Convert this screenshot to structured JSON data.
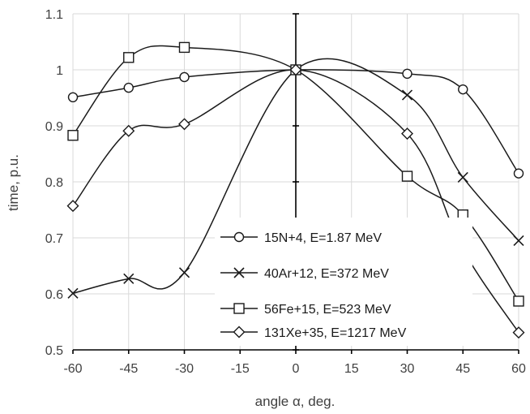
{
  "chart_data": {
    "type": "line",
    "title": "",
    "xlabel": "angle α, deg.",
    "ylabel": "time, p.u.",
    "xlim": [
      -60,
      60
    ],
    "ylim": [
      0.5,
      1.1
    ],
    "xticks": [
      -60,
      -45,
      -30,
      -15,
      0,
      15,
      30,
      45,
      60
    ],
    "yticks": [
      0.5,
      0.6,
      0.7,
      0.8,
      0.9,
      1,
      1.1
    ],
    "grid": true,
    "legend_position": "lower-center",
    "x": [
      -60,
      -45,
      -30,
      0,
      30,
      45,
      60
    ],
    "series": [
      {
        "name": "15N+4, E=1.87 MeV",
        "marker": "circle",
        "values": [
          0.951,
          0.968,
          0.987,
          1.0,
          0.993,
          0.965,
          0.815
        ]
      },
      {
        "name": "40Ar+12, E=372 MeV",
        "marker": "x",
        "values": [
          0.601,
          0.627,
          0.638,
          1.0,
          0.955,
          0.808,
          0.695
        ]
      },
      {
        "name": "56Fe+15, E=523 MeV",
        "marker": "square",
        "values": [
          0.883,
          1.022,
          1.04,
          1.0,
          0.81,
          0.741,
          0.587
        ]
      },
      {
        "name": "131Xe+35, E=1217 MeV",
        "marker": "diamond",
        "values": [
          0.757,
          0.891,
          0.903,
          1.0,
          0.886,
          0.679,
          0.531
        ]
      }
    ]
  }
}
